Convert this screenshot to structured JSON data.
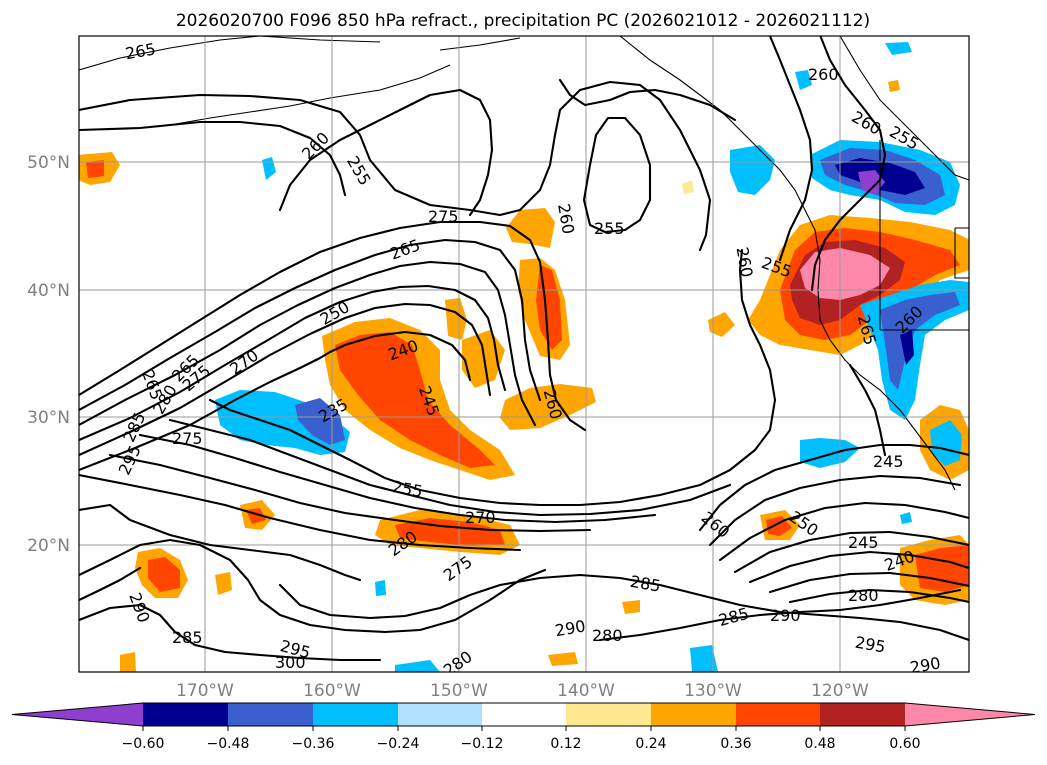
{
  "title": "2026020700 F096 850 hPa refract., precipitation PC (2026021012 - 2026021112)",
  "lat_ticks": [
    "50°N",
    "40°N",
    "30°N",
    "20°N"
  ],
  "lon_ticks": [
    "170°W",
    "160°W",
    "150°W",
    "140°W",
    "130°W",
    "120°W"
  ],
  "colorbar": {
    "colors": [
      "#8f3fd0",
      "#000090",
      "#3a5fcf",
      "#00bfff",
      "#aee0ff",
      "#ffffff",
      "#ffe88f",
      "#ffa500",
      "#ff4500",
      "#b22222",
      "#ff88aa"
    ],
    "tick_labels": [
      "−0.60",
      "−0.48",
      "−0.36",
      "−0.24",
      "−0.12",
      "0.12",
      "0.24",
      "0.36",
      "0.48",
      "0.60"
    ]
  },
  "contour_labels": [
    "265",
    "260",
    "255",
    "275",
    "265",
    "260",
    "255",
    "260",
    "255",
    "260",
    "250",
    "255",
    "260",
    "270",
    "265",
    "275",
    "280",
    "265",
    "285",
    "295",
    "240",
    "245",
    "235",
    "275",
    "260",
    "255",
    "260",
    "270",
    "280",
    "275",
    "260",
    "250",
    "245",
    "240",
    "245",
    "265",
    "285",
    "290",
    "280",
    "285",
    "290",
    "280",
    "295",
    "290",
    "290",
    "285",
    "295",
    "300",
    "280"
  ]
}
